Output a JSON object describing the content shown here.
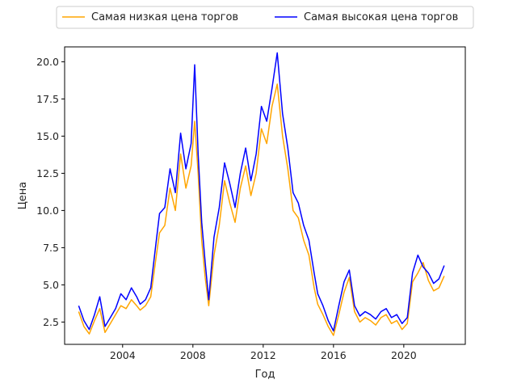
{
  "chart_data": {
    "type": "line",
    "title": "",
    "xlabel": "Год",
    "ylabel": "Цена",
    "xlim": [
      2000.7,
      2023.5
    ],
    "ylim": [
      1.0,
      21.0
    ],
    "x_ticks": [
      2004,
      2008,
      2012,
      2016,
      2020
    ],
    "y_ticks": [
      2.5,
      5.0,
      7.5,
      10.0,
      12.5,
      15.0,
      17.5,
      20.0
    ],
    "x_tick_labels": [
      "2004",
      "2008",
      "2012",
      "2016",
      "2020"
    ],
    "y_tick_labels": [
      "2.5",
      "5.0",
      "7.5",
      "10.0",
      "12.5",
      "15.0",
      "17.5",
      "20.0"
    ],
    "grid": false,
    "legend_position": "top-center",
    "x": [
      2001.5,
      2001.8,
      2002.1,
      2002.4,
      2002.7,
      2003.0,
      2003.3,
      2003.6,
      2003.9,
      2004.2,
      2004.5,
      2004.8,
      2005.0,
      2005.3,
      2005.6,
      2005.9,
      2006.1,
      2006.4,
      2006.7,
      2007.0,
      2007.3,
      2007.6,
      2007.9,
      2008.1,
      2008.3,
      2008.5,
      2008.7,
      2008.9,
      2009.2,
      2009.5,
      2009.8,
      2010.1,
      2010.4,
      2010.7,
      2011.0,
      2011.3,
      2011.6,
      2011.9,
      2012.2,
      2012.5,
      2012.8,
      2013.1,
      2013.4,
      2013.7,
      2014.0,
      2014.3,
      2014.6,
      2014.9,
      2015.1,
      2015.4,
      2015.7,
      2016.0,
      2016.3,
      2016.6,
      2016.9,
      2017.2,
      2017.5,
      2017.8,
      2018.1,
      2018.4,
      2018.7,
      2019.0,
      2019.3,
      2019.6,
      2019.9,
      2020.2,
      2020.5,
      2020.8,
      2021.1,
      2021.4,
      2021.7,
      2022.0,
      2022.3
    ],
    "series": [
      {
        "name": "Самая низкая цена торгов",
        "color": "#ffa500",
        "values": [
          3.2,
          2.2,
          1.7,
          2.6,
          3.4,
          1.8,
          2.4,
          3.0,
          3.6,
          3.4,
          4.0,
          3.6,
          3.3,
          3.6,
          4.2,
          6.8,
          8.5,
          9.0,
          11.5,
          10.0,
          13.8,
          11.5,
          13.0,
          16.0,
          12.5,
          8.0,
          5.5,
          3.6,
          7.0,
          9.0,
          12.0,
          10.5,
          9.2,
          11.5,
          13.0,
          11.0,
          12.5,
          15.5,
          14.5,
          17.0,
          18.5,
          15.0,
          12.8,
          10.0,
          9.5,
          8.0,
          7.0,
          4.8,
          3.7,
          3.0,
          2.2,
          1.6,
          3.0,
          4.5,
          5.5,
          3.2,
          2.5,
          2.8,
          2.6,
          2.3,
          2.8,
          3.0,
          2.4,
          2.6,
          2.0,
          2.4,
          5.2,
          5.8,
          6.5,
          5.3,
          4.6,
          4.8,
          5.6
        ]
      },
      {
        "name": "Самая высокая цена торгов",
        "color": "#0000ff",
        "values": [
          3.6,
          2.6,
          2.0,
          3.0,
          4.2,
          2.2,
          2.8,
          3.4,
          4.4,
          4.0,
          4.8,
          4.2,
          3.7,
          4.0,
          4.8,
          7.8,
          9.8,
          10.2,
          12.8,
          11.2,
          15.2,
          12.8,
          14.5,
          19.8,
          13.8,
          9.2,
          6.5,
          4.0,
          8.2,
          10.2,
          13.2,
          11.8,
          10.2,
          12.5,
          14.2,
          12.0,
          13.8,
          17.0,
          16.0,
          18.2,
          20.6,
          16.5,
          14.2,
          11.2,
          10.5,
          9.0,
          8.0,
          5.8,
          4.4,
          3.6,
          2.6,
          1.9,
          3.6,
          5.2,
          6.0,
          3.6,
          2.9,
          3.2,
          3.0,
          2.7,
          3.2,
          3.4,
          2.8,
          3.0,
          2.4,
          2.8,
          5.8,
          7.0,
          6.2,
          5.8,
          5.1,
          5.4,
          6.3
        ]
      }
    ]
  }
}
